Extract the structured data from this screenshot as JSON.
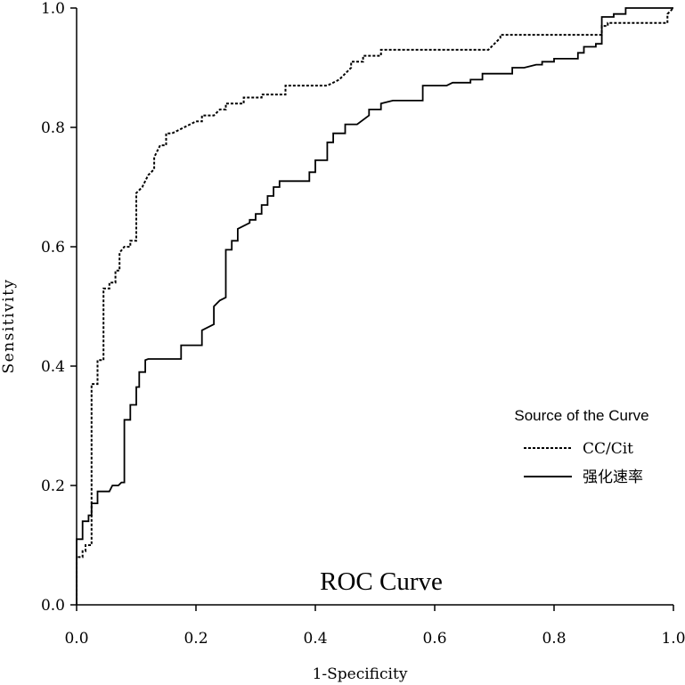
{
  "chart_data": {
    "type": "line",
    "title": "ROC Curve",
    "xlabel": "1-Specificity",
    "ylabel": "Sensitivity",
    "xlim": [
      0,
      1
    ],
    "ylim": [
      0,
      1
    ],
    "x_ticks": [
      "0.0",
      "0.2",
      "0.4",
      "0.6",
      "0.8",
      "1.0"
    ],
    "y_ticks": [
      "0.0",
      "0.2",
      "0.4",
      "0.6",
      "0.8",
      "1.0"
    ],
    "grid": false,
    "legend": {
      "title": "Source of the Curve",
      "placement": "right",
      "entries": [
        {
          "name": "CC/Cit",
          "style": "dotted"
        },
        {
          "name": "强化速率",
          "style": "solid"
        }
      ]
    },
    "series": [
      {
        "name": "CC/Cit",
        "style": "dotted",
        "points": [
          [
            0.0,
            0.0
          ],
          [
            0.0,
            0.08
          ],
          [
            0.01,
            0.08
          ],
          [
            0.01,
            0.09
          ],
          [
            0.015,
            0.09
          ],
          [
            0.015,
            0.1
          ],
          [
            0.025,
            0.1
          ],
          [
            0.025,
            0.37
          ],
          [
            0.035,
            0.37
          ],
          [
            0.035,
            0.41
          ],
          [
            0.045,
            0.41
          ],
          [
            0.045,
            0.53
          ],
          [
            0.055,
            0.53
          ],
          [
            0.055,
            0.54
          ],
          [
            0.065,
            0.54
          ],
          [
            0.065,
            0.56
          ],
          [
            0.072,
            0.56
          ],
          [
            0.072,
            0.59
          ],
          [
            0.08,
            0.6
          ],
          [
            0.09,
            0.6
          ],
          [
            0.09,
            0.61
          ],
          [
            0.1,
            0.61
          ],
          [
            0.1,
            0.69
          ],
          [
            0.11,
            0.7
          ],
          [
            0.12,
            0.72
          ],
          [
            0.13,
            0.73
          ],
          [
            0.13,
            0.75
          ],
          [
            0.14,
            0.77
          ],
          [
            0.15,
            0.77
          ],
          [
            0.15,
            0.79
          ],
          [
            0.16,
            0.79
          ],
          [
            0.18,
            0.8
          ],
          [
            0.2,
            0.81
          ],
          [
            0.21,
            0.81
          ],
          [
            0.21,
            0.82
          ],
          [
            0.23,
            0.82
          ],
          [
            0.24,
            0.83
          ],
          [
            0.25,
            0.83
          ],
          [
            0.25,
            0.84
          ],
          [
            0.28,
            0.84
          ],
          [
            0.28,
            0.85
          ],
          [
            0.31,
            0.85
          ],
          [
            0.31,
            0.855
          ],
          [
            0.35,
            0.855
          ],
          [
            0.35,
            0.87
          ],
          [
            0.42,
            0.87
          ],
          [
            0.44,
            0.88
          ],
          [
            0.46,
            0.9
          ],
          [
            0.46,
            0.91
          ],
          [
            0.48,
            0.91
          ],
          [
            0.48,
            0.92
          ],
          [
            0.51,
            0.92
          ],
          [
            0.51,
            0.93
          ],
          [
            0.69,
            0.93
          ],
          [
            0.7,
            0.94
          ],
          [
            0.71,
            0.95
          ],
          [
            0.71,
            0.955
          ],
          [
            0.88,
            0.955
          ],
          [
            0.88,
            0.97
          ],
          [
            0.89,
            0.97
          ],
          [
            0.89,
            0.975
          ],
          [
            0.99,
            0.975
          ],
          [
            0.99,
            0.99
          ],
          [
            1.0,
            1.0
          ]
        ]
      },
      {
        "name": "强化速率",
        "style": "solid",
        "points": [
          [
            0.0,
            0.0
          ],
          [
            0.0,
            0.11
          ],
          [
            0.01,
            0.11
          ],
          [
            0.01,
            0.14
          ],
          [
            0.02,
            0.14
          ],
          [
            0.02,
            0.15
          ],
          [
            0.025,
            0.15
          ],
          [
            0.025,
            0.17
          ],
          [
            0.035,
            0.17
          ],
          [
            0.035,
            0.19
          ],
          [
            0.055,
            0.19
          ],
          [
            0.06,
            0.2
          ],
          [
            0.07,
            0.2
          ],
          [
            0.075,
            0.205
          ],
          [
            0.08,
            0.205
          ],
          [
            0.08,
            0.31
          ],
          [
            0.09,
            0.31
          ],
          [
            0.09,
            0.335
          ],
          [
            0.1,
            0.335
          ],
          [
            0.1,
            0.365
          ],
          [
            0.105,
            0.365
          ],
          [
            0.105,
            0.39
          ],
          [
            0.115,
            0.39
          ],
          [
            0.115,
            0.41
          ],
          [
            0.12,
            0.412
          ],
          [
            0.175,
            0.412
          ],
          [
            0.175,
            0.435
          ],
          [
            0.21,
            0.435
          ],
          [
            0.21,
            0.46
          ],
          [
            0.22,
            0.465
          ],
          [
            0.23,
            0.47
          ],
          [
            0.23,
            0.5
          ],
          [
            0.24,
            0.51
          ],
          [
            0.25,
            0.515
          ],
          [
            0.25,
            0.595
          ],
          [
            0.26,
            0.595
          ],
          [
            0.26,
            0.61
          ],
          [
            0.27,
            0.61
          ],
          [
            0.27,
            0.63
          ],
          [
            0.28,
            0.635
          ],
          [
            0.29,
            0.64
          ],
          [
            0.29,
            0.645
          ],
          [
            0.3,
            0.645
          ],
          [
            0.3,
            0.655
          ],
          [
            0.31,
            0.655
          ],
          [
            0.31,
            0.67
          ],
          [
            0.32,
            0.67
          ],
          [
            0.32,
            0.685
          ],
          [
            0.33,
            0.685
          ],
          [
            0.33,
            0.7
          ],
          [
            0.34,
            0.7
          ],
          [
            0.34,
            0.71
          ],
          [
            0.39,
            0.71
          ],
          [
            0.39,
            0.725
          ],
          [
            0.4,
            0.725
          ],
          [
            0.4,
            0.745
          ],
          [
            0.42,
            0.745
          ],
          [
            0.42,
            0.775
          ],
          [
            0.43,
            0.775
          ],
          [
            0.43,
            0.79
          ],
          [
            0.45,
            0.79
          ],
          [
            0.45,
            0.805
          ],
          [
            0.47,
            0.805
          ],
          [
            0.49,
            0.82
          ],
          [
            0.49,
            0.83
          ],
          [
            0.51,
            0.83
          ],
          [
            0.51,
            0.84
          ],
          [
            0.53,
            0.845
          ],
          [
            0.58,
            0.845
          ],
          [
            0.58,
            0.87
          ],
          [
            0.62,
            0.87
          ],
          [
            0.63,
            0.875
          ],
          [
            0.66,
            0.875
          ],
          [
            0.66,
            0.88
          ],
          [
            0.68,
            0.88
          ],
          [
            0.68,
            0.89
          ],
          [
            0.73,
            0.89
          ],
          [
            0.73,
            0.9
          ],
          [
            0.75,
            0.9
          ],
          [
            0.77,
            0.905
          ],
          [
            0.78,
            0.905
          ],
          [
            0.78,
            0.91
          ],
          [
            0.8,
            0.91
          ],
          [
            0.8,
            0.915
          ],
          [
            0.84,
            0.915
          ],
          [
            0.84,
            0.925
          ],
          [
            0.85,
            0.925
          ],
          [
            0.85,
            0.935
          ],
          [
            0.87,
            0.935
          ],
          [
            0.87,
            0.94
          ],
          [
            0.88,
            0.94
          ],
          [
            0.88,
            0.985
          ],
          [
            0.9,
            0.985
          ],
          [
            0.9,
            0.99
          ],
          [
            0.92,
            0.99
          ],
          [
            0.92,
            1.0
          ],
          [
            1.0,
            1.0
          ]
        ]
      }
    ]
  }
}
